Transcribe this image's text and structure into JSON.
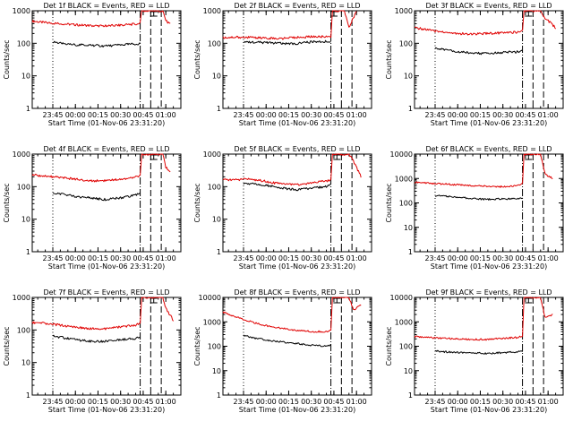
{
  "chart_data": [
    {
      "type": "line",
      "title": "Det 1f BLACK = Events, RED = LLD",
      "xlabel": "Start Time (01-Nov-06 23:31:20)",
      "ylabel": "Counts/sec",
      "yscale": "log",
      "ylim": [
        1,
        1000
      ],
      "xlim": [
        "23:31:20",
        "01:10:00"
      ],
      "xtick_labels": [
        "23:45",
        "00:00",
        "00:15",
        "00:30",
        "00:45",
        "01:00"
      ],
      "ytick_labels": [
        "1",
        "10",
        "100",
        "1000"
      ],
      "vlines": [
        "23:45",
        "00:43",
        "00:50",
        "00:57"
      ],
      "marker_time": "00:52",
      "series": [
        {
          "color": "#e00000",
          "x": [
            "23:31:20",
            "23:40",
            "23:50",
            "00:00",
            "00:10",
            "00:20",
            "00:30",
            "00:40",
            "00:43",
            "00:44",
            "00:58",
            "01:00",
            "01:03"
          ],
          "values": [
            480,
            430,
            400,
            370,
            350,
            340,
            360,
            390,
            420,
            1000,
            1000,
            500,
            380
          ]
        },
        {
          "color": "#000000",
          "x": [
            "23:45",
            "23:50",
            "00:00",
            "00:10",
            "00:20",
            "00:30",
            "00:40",
            "00:43"
          ],
          "values": [
            110,
            100,
            90,
            88,
            82,
            90,
            95,
            100
          ]
        }
      ]
    },
    {
      "type": "line",
      "title": "Det 2f BLACK = Events, RED = LLD",
      "xlabel": "Start Time (01-Nov-06 23:31:20)",
      "ylabel": "Counts/sec",
      "yscale": "log",
      "ylim": [
        1,
        1000
      ],
      "xlim": [
        "23:31:20",
        "01:10:00"
      ],
      "xtick_labels": [
        "23:45",
        "00:00",
        "00:15",
        "00:30",
        "00:45",
        "01:00"
      ],
      "ytick_labels": [
        "1",
        "10",
        "100",
        "1000"
      ],
      "vlines": [
        "23:45",
        "00:43",
        "00:50",
        "00:57"
      ],
      "marker_time": "00:45",
      "series": [
        {
          "color": "#e00000",
          "x": [
            "23:31:20",
            "23:40",
            "23:50",
            "00:00",
            "00:10",
            "00:20",
            "00:30",
            "00:40",
            "00:43",
            "00:44",
            "00:52",
            "00:55",
            "01:00"
          ],
          "values": [
            150,
            155,
            150,
            145,
            140,
            150,
            160,
            160,
            165,
            1000,
            1000,
            300,
            1000
          ]
        },
        {
          "color": "#000000",
          "x": [
            "23:45",
            "23:50",
            "00:00",
            "00:10",
            "00:20",
            "00:30",
            "00:40",
            "00:43"
          ],
          "values": [
            110,
            108,
            105,
            100,
            98,
            110,
            115,
            110
          ]
        }
      ]
    },
    {
      "type": "line",
      "title": "Det 3f BLACK = Events, RED = LLD",
      "xlabel": "Start Time (01-Nov-06 23:31:20)",
      "ylabel": "Counts/sec",
      "yscale": "log",
      "ylim": [
        1,
        1000
      ],
      "xlim": [
        "23:31:20",
        "01:10:00"
      ],
      "xtick_labels": [
        "23:45",
        "00:00",
        "00:15",
        "00:30",
        "00:45",
        "01:00"
      ],
      "ytick_labels": [
        "1",
        "10",
        "100",
        "1000"
      ],
      "vlines": [
        "23:45",
        "00:43",
        "00:50",
        "00:57"
      ],
      "marker_time": "00:47",
      "series": [
        {
          "color": "#e00000",
          "x": [
            "23:31:20",
            "23:40",
            "23:50",
            "00:00",
            "00:10",
            "00:20",
            "00:30",
            "00:40",
            "00:43",
            "00:44",
            "00:55",
            "00:58",
            "01:05"
          ],
          "values": [
            300,
            260,
            220,
            200,
            190,
            200,
            210,
            220,
            240,
            1000,
            1000,
            600,
            300
          ]
        },
        {
          "color": "#000000",
          "x": [
            "23:45",
            "23:50",
            "00:00",
            "00:10",
            "00:20",
            "00:30",
            "00:40",
            "00:43"
          ],
          "values": [
            70,
            65,
            55,
            50,
            48,
            52,
            55,
            60
          ]
        }
      ]
    },
    {
      "type": "line",
      "title": "Det 4f BLACK = Events, RED = LLD",
      "xlabel": "Start Time (01-Nov-06 23:31:20)",
      "ylabel": "Counts/sec",
      "yscale": "log",
      "ylim": [
        1,
        1000
      ],
      "xlim": [
        "23:31:20",
        "01:10:00"
      ],
      "xtick_labels": [
        "23:45",
        "00:00",
        "00:15",
        "00:30",
        "00:45",
        "01:00"
      ],
      "ytick_labels": [
        "1",
        "10",
        "100",
        "1000"
      ],
      "vlines": [
        "23:45",
        "00:43",
        "00:50",
        "00:57"
      ],
      "marker_time": "00:52",
      "series": [
        {
          "color": "#e00000",
          "x": [
            "23:31:20",
            "23:40",
            "23:50",
            "00:00",
            "00:10",
            "00:20",
            "00:30",
            "00:40",
            "00:43",
            "00:44",
            "00:58",
            "01:00",
            "01:03"
          ],
          "values": [
            230,
            210,
            190,
            170,
            150,
            155,
            170,
            200,
            220,
            1000,
            1000,
            400,
            280
          ]
        },
        {
          "color": "#000000",
          "x": [
            "23:45",
            "23:50",
            "00:00",
            "00:10",
            "00:20",
            "00:30",
            "00:40",
            "00:43"
          ],
          "values": [
            65,
            60,
            50,
            45,
            40,
            45,
            55,
            65
          ]
        }
      ]
    },
    {
      "type": "line",
      "title": "Det 5f BLACK = Events, RED = LLD",
      "xlabel": "Start Time (01-Nov-06 23:31:20)",
      "ylabel": "Counts/sec",
      "yscale": "log",
      "ylim": [
        1,
        1000
      ],
      "xlim": [
        "23:31:20",
        "01:10:00"
      ],
      "xtick_labels": [
        "23:45",
        "00:00",
        "00:15",
        "00:30",
        "00:45",
        "01:00"
      ],
      "ytick_labels": [
        "1",
        "10",
        "100",
        "1000"
      ],
      "vlines": [
        "23:45",
        "00:43",
        "00:50",
        "00:57"
      ],
      "marker_time": "00:47",
      "series": [
        {
          "color": "#e00000",
          "x": [
            "23:31:20",
            "23:40",
            "23:50",
            "00:00",
            "00:10",
            "00:20",
            "00:30",
            "00:40",
            "00:43",
            "00:44",
            "00:55",
            "00:58",
            "01:03"
          ],
          "values": [
            160,
            165,
            170,
            145,
            120,
            115,
            130,
            150,
            160,
            1000,
            1000,
            600,
            200
          ]
        },
        {
          "color": "#000000",
          "x": [
            "23:45",
            "23:50",
            "00:00",
            "00:10",
            "00:20",
            "00:30",
            "00:40",
            "00:43"
          ],
          "values": [
            120,
            125,
            110,
            90,
            80,
            90,
            100,
            110
          ]
        }
      ]
    },
    {
      "type": "line",
      "title": "Det 6f BLACK = Events, RED = LLD",
      "xlabel": "Start Time (01-Nov-06 23:31:20)",
      "ylabel": "Counts/sec",
      "yscale": "log",
      "ylim": [
        1,
        10000
      ],
      "xlim": [
        "23:31:20",
        "01:10:00"
      ],
      "xtick_labels": [
        "23:45",
        "00:00",
        "00:15",
        "00:30",
        "00:45",
        "01:00"
      ],
      "ytick_labels": [
        "1",
        "10",
        "100",
        "1000",
        "10000"
      ],
      "vlines": [
        "23:45",
        "00:43",
        "00:50",
        "00:57"
      ],
      "marker_time": "00:47",
      "series": [
        {
          "color": "#e00000",
          "x": [
            "23:31:20",
            "23:40",
            "23:50",
            "00:00",
            "00:10",
            "00:20",
            "00:30",
            "00:40",
            "00:43",
            "00:44",
            "00:55",
            "00:58",
            "01:03"
          ],
          "values": [
            700,
            650,
            600,
            550,
            500,
            480,
            460,
            500,
            600,
            10000,
            10000,
            1500,
            1000
          ]
        },
        {
          "color": "#000000",
          "x": [
            "23:45",
            "23:50",
            "00:00",
            "00:10",
            "00:20",
            "00:30",
            "00:40",
            "00:43"
          ],
          "values": [
            200,
            190,
            170,
            150,
            140,
            145,
            150,
            160
          ]
        }
      ]
    },
    {
      "type": "line",
      "title": "Det 7f BLACK = Events, RED = LLD",
      "xlabel": "Start Time (01-Nov-06 23:31:20)",
      "ylabel": "Counts/sec",
      "yscale": "log",
      "ylim": [
        1,
        1000
      ],
      "xlim": [
        "23:31:20",
        "01:10:00"
      ],
      "xtick_labels": [
        "23:45",
        "00:00",
        "00:15",
        "00:30",
        "00:45",
        "01:00"
      ],
      "ytick_labels": [
        "1",
        "10",
        "100",
        "1000"
      ],
      "vlines": [
        "23:45",
        "00:43",
        "00:50",
        "00:57"
      ],
      "marker_time": "00:52",
      "series": [
        {
          "color": "#e00000",
          "x": [
            "23:31:20",
            "23:40",
            "23:50",
            "00:00",
            "00:10",
            "00:20",
            "00:30",
            "00:40",
            "00:43",
            "00:44",
            "00:58",
            "01:00",
            "01:05"
          ],
          "values": [
            170,
            160,
            140,
            120,
            110,
            110,
            125,
            140,
            160,
            1000,
            1000,
            450,
            200
          ]
        },
        {
          "color": "#000000",
          "x": [
            "23:45",
            "23:50",
            "00:00",
            "00:10",
            "00:20",
            "00:30",
            "00:40",
            "00:43"
          ],
          "values": [
            65,
            60,
            50,
            45,
            45,
            50,
            55,
            60
          ]
        }
      ]
    },
    {
      "type": "line",
      "title": "Det 8f BLACK = Events, RED = LLD",
      "xlabel": "Start Time (01-Nov-06 23:31:20)",
      "ylabel": "Counts/sec",
      "yscale": "log",
      "ylim": [
        1,
        10000
      ],
      "xlim": [
        "23:31:20",
        "01:10:00"
      ],
      "xtick_labels": [
        "23:45",
        "00:00",
        "00:15",
        "00:30",
        "00:45",
        "01:00"
      ],
      "ytick_labels": [
        "1",
        "10",
        "100",
        "1000",
        "10000"
      ],
      "vlines": [
        "23:45",
        "00:43",
        "00:50",
        "00:57"
      ],
      "marker_time": "00:47",
      "series": [
        {
          "color": "#e00000",
          "x": [
            "23:31:20",
            "23:40",
            "23:50",
            "00:00",
            "00:10",
            "00:20",
            "00:30",
            "00:40",
            "00:43",
            "00:44",
            "00:55",
            "00:58",
            "01:03"
          ],
          "values": [
            2500,
            1600,
            1000,
            700,
            550,
            450,
            400,
            400,
            450,
            10000,
            10000,
            3000,
            5000
          ]
        },
        {
          "color": "#000000",
          "x": [
            "23:45",
            "23:50",
            "00:00",
            "00:10",
            "00:20",
            "00:30",
            "00:40",
            "00:43"
          ],
          "values": [
            280,
            230,
            180,
            150,
            130,
            110,
            100,
            110
          ]
        }
      ]
    },
    {
      "type": "line",
      "title": "Det 9f BLACK = Events, RED = LLD",
      "xlabel": "Start Time (01-Nov-06 23:31:20)",
      "ylabel": "Counts/sec",
      "yscale": "log",
      "ylim": [
        1,
        10000
      ],
      "xlim": [
        "23:31:20",
        "01:10:00"
      ],
      "xtick_labels": [
        "23:45",
        "00:00",
        "00:15",
        "00:30",
        "00:45",
        "01:00"
      ],
      "ytick_labels": [
        "1",
        "10",
        "100",
        "1000",
        "10000"
      ],
      "vlines": [
        "23:45",
        "00:43",
        "00:50",
        "00:57"
      ],
      "marker_time": "00:47",
      "series": [
        {
          "color": "#e00000",
          "x": [
            "23:31:20",
            "23:40",
            "23:50",
            "00:00",
            "00:10",
            "00:20",
            "00:30",
            "00:40",
            "00:43",
            "00:44",
            "00:55",
            "00:58",
            "01:03"
          ],
          "values": [
            250,
            230,
            210,
            200,
            190,
            190,
            210,
            230,
            260,
            10000,
            10000,
            1500,
            2000
          ]
        },
        {
          "color": "#000000",
          "x": [
            "23:45",
            "23:50",
            "00:00",
            "00:10",
            "00:20",
            "00:30",
            "00:40",
            "00:43"
          ],
          "values": [
            65,
            60,
            55,
            55,
            50,
            55,
            60,
            60
          ]
        }
      ]
    }
  ]
}
